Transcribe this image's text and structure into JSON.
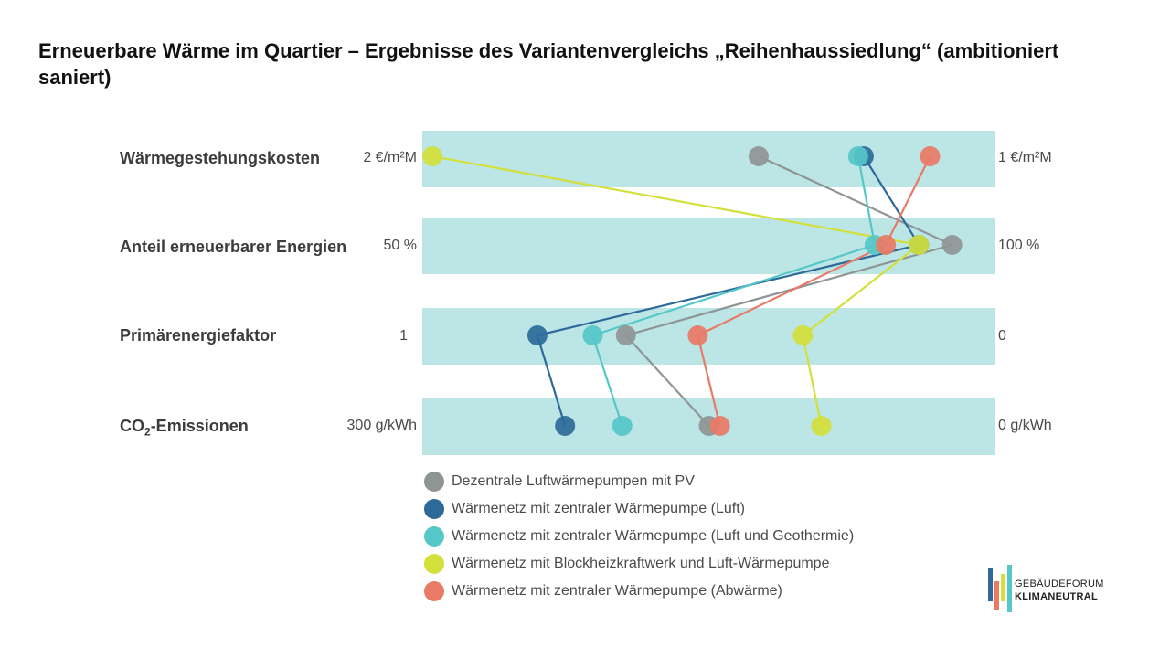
{
  "title": "Erneuerbare Wärme im Quartier – Ergebnisse des Variantenvergleichs „Reihenhaussiedlung“ (ambitioniert saniert)",
  "rows": [
    {
      "label": "Wärmegestehungskosten",
      "left": "2 €/m²M",
      "right": "1 €/m²M"
    },
    {
      "label": "Anteil erneuerbarer Energien",
      "left": "50 %",
      "right": "100 %"
    },
    {
      "label": "Primärenergiefaktor",
      "left": "1",
      "right": "0"
    },
    {
      "label_main": "CO",
      "label_sub": "2",
      "label_tail": "-Emissionen",
      "left": "300 g/kWh",
      "right": "0 g/kWh"
    }
  ],
  "colors": {
    "band": "#bce6e6",
    "gray": "#8f9595",
    "darkblue": "#2d6a9a",
    "teal": "#55c7c8",
    "lime": "#d3e03c",
    "salmon": "#e97a66"
  },
  "chart_data": {
    "type": "scatter",
    "axes": [
      {
        "name": "Wärmegestehungskosten",
        "min": 2,
        "max": 1,
        "unit": "€/m²M"
      },
      {
        "name": "Anteil erneuerbarer Energien",
        "min": 50,
        "max": 100,
        "unit": "%"
      },
      {
        "name": "Primärenergiefaktor",
        "min": 1,
        "max": 0,
        "unit": ""
      },
      {
        "name": "CO₂-Emissionen",
        "min": 300,
        "max": 0,
        "unit": "g/kWh"
      }
    ],
    "series": [
      {
        "name": "Dezentrale Luftwärmepumpen mit PV",
        "color": "#8f9595",
        "values": [
          1.41,
          97,
          0.65,
          150
        ]
      },
      {
        "name": "Wärmenetz mit zentraler Wärmepumpe (Luft)",
        "color": "#2d6a9a",
        "values": [
          1.22,
          94,
          0.81,
          228
        ]
      },
      {
        "name": "Wärmenetz mit zentraler Wärmepumpe (Luft und Geothermie)",
        "color": "#55c7c8",
        "values": [
          1.23,
          90,
          0.71,
          197
        ]
      },
      {
        "name": "Wärmenetz mit Blockheizkraftwerk und Luft-Wärmepumpe",
        "color": "#d3e03c",
        "values": [
          2.0,
          94,
          0.33,
          89
        ]
      },
      {
        "name": "Wärmenetz mit zentraler Wärmepumpe (Abwärme)",
        "color": "#e97a66",
        "values": [
          1.1,
          91,
          0.52,
          144
        ]
      }
    ]
  },
  "legend": [
    {
      "label": "Dezentrale Luftwärmepumpen mit PV",
      "color": "#8f9595"
    },
    {
      "label": "Wärmenetz mit zentraler Wärmepumpe (Luft)",
      "color": "#2d6a9a"
    },
    {
      "label": "Wärmenetz mit zentraler Wärmepumpe (Luft und Geothermie)",
      "color": "#55c7c8"
    },
    {
      "label": "Wärmenetz mit Blockheizkraftwerk und Luft-Wärmepumpe",
      "color": "#d3e03c"
    },
    {
      "label": "Wärmenetz mit zentraler Wärmepumpe (Abwärme)",
      "color": "#e97a66"
    }
  ],
  "logo": {
    "line1": "GEBÄUDEFORUM",
    "line2": "KLIMANEUTRAL"
  }
}
